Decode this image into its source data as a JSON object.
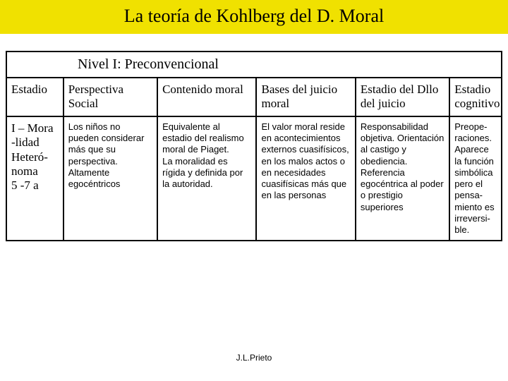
{
  "title": "La teoría de Kohlberg del D. Moral",
  "level_heading": "Nivel I: Preconvencional",
  "columns": [
    "Estadio",
    "Perspectiva Social",
    "Contenido moral",
    "Bases del juicio moral",
    "Estadio del Dllo del juicio",
    "Estadio cognitivo"
  ],
  "row": {
    "label": "I – Mora\n-lidad\nHeteró-\nnoma\n5 -7 a",
    "perspectiva": "Los niños no pueden considerar más que su perspectiva. Altamente egocéntricos",
    "contenido": "Equivalente al estadio del realismo moral de Piaget.\nLa moralidad es rígida y definida por la autoridad.",
    "bases": "El valor moral reside en acontecimientos externos cuasifísicos, en los malos actos o en necesidades cuasifísicas más que en las personas",
    "dllo": "Responsabilidad objetiva. Orientación al castigo y obediencia. Referencia egocéntrica al poder o prestigio superiores",
    "cognitivo": "Preope-\nraciones.\nAparece la función simbólica pero el pensa-\nmiento es irreversi-\nble."
  },
  "footer": "J.L.Prieto",
  "colors": {
    "title_bg": "#f0e100",
    "border": "#000000",
    "text": "#000000",
    "bg": "#ffffff"
  }
}
